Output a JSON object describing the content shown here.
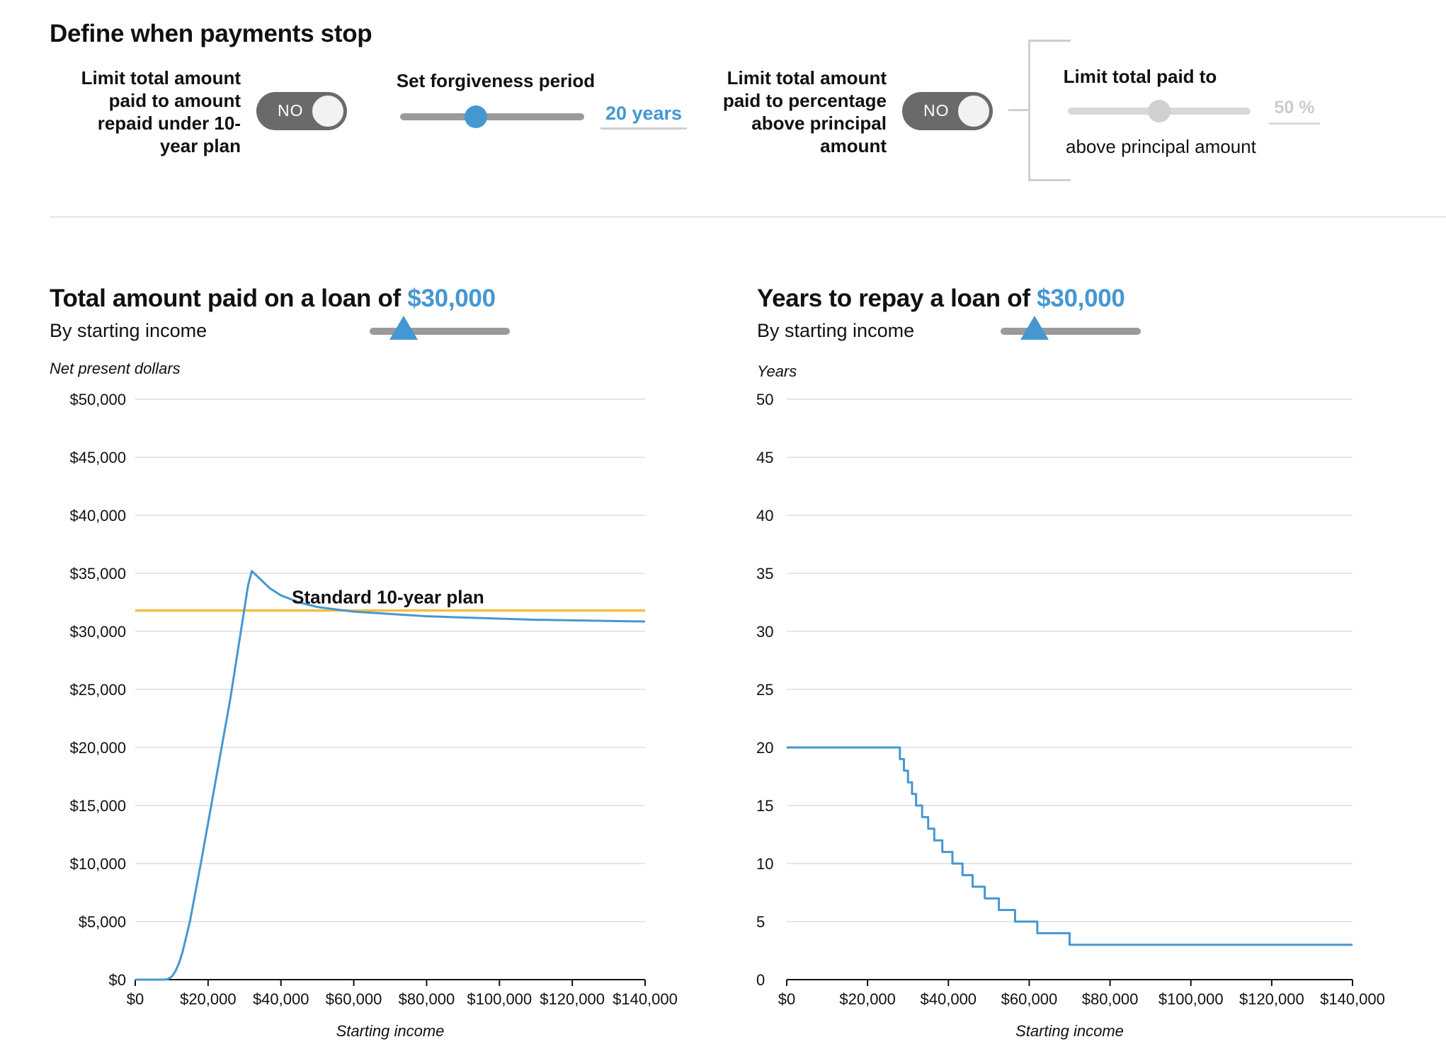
{
  "controls": {
    "section_title": "Define when payments stop",
    "limit_10yr": {
      "label": "Limit total amount paid to amount repaid under 10-year plan",
      "toggle": "NO"
    },
    "forgiveness": {
      "label": "Set forgiveness period",
      "value": "20 years",
      "slider_fraction": 0.41
    },
    "limit_pct": {
      "label": "Limit total amount paid to percentage above principal amount",
      "toggle": "NO"
    },
    "limit_paid": {
      "label": "Limit total paid to",
      "value": "50 %",
      "suffix": "above principal amount",
      "slider_fraction": 0.5,
      "disabled": true
    }
  },
  "colors": {
    "accent": "#4597d2",
    "standard_plan": "#f2be42",
    "grid": "#dddddd",
    "toggle": "#6a6a6a"
  },
  "chart_data": [
    {
      "type": "line",
      "title": "Total amount paid on a loan of",
      "title_amount": "$30,000",
      "subtitle": "By starting income",
      "ylabel": "Net present dollars",
      "xlabel": "Starting income",
      "loan_slider_fraction": 0.24,
      "xlim": [
        0,
        140000
      ],
      "ylim": [
        0,
        50000
      ],
      "x_ticks": [
        0,
        20000,
        40000,
        60000,
        80000,
        100000,
        120000,
        140000
      ],
      "x_tick_labels": [
        "$0",
        "$20,000",
        "$40,000",
        "$60,000",
        "$80,000",
        "$100,000",
        "$120,000",
        "$140,000"
      ],
      "y_ticks": [
        0,
        5000,
        10000,
        15000,
        20000,
        25000,
        30000,
        35000,
        40000,
        45000,
        50000
      ],
      "y_tick_labels": [
        "$0",
        "$5,000",
        "$10,000",
        "$15,000",
        "$20,000",
        "$25,000",
        "$30,000",
        "$35,000",
        "$40,000",
        "$45,000",
        "$50,000"
      ],
      "grid": true,
      "reference_line": {
        "label": "Standard 10-year plan",
        "y": 31800
      },
      "series": [
        {
          "x": [
            0,
            8000,
            9000,
            10000,
            11000,
            12000,
            13000,
            15000,
            18000,
            22000,
            26000,
            28000,
            30000,
            31000,
            32000,
            34000,
            37000,
            40000,
            45000,
            50000,
            55000,
            60000,
            70000,
            80000,
            90000,
            100000,
            110000,
            120000,
            130000,
            140000
          ],
          "y": [
            0,
            0,
            50,
            250,
            700,
            1400,
            2400,
            5000,
            10000,
            17000,
            24000,
            28000,
            32000,
            34000,
            35200,
            34600,
            33700,
            33100,
            32500,
            32100,
            31900,
            31700,
            31500,
            31300,
            31200,
            31100,
            31000,
            30950,
            30900,
            30850
          ]
        }
      ]
    },
    {
      "type": "line",
      "title": "Years to repay a loan of",
      "title_amount": "$30,000",
      "subtitle": "By starting income",
      "ylabel": "Years",
      "xlabel": "Starting income",
      "loan_slider_fraction": 0.24,
      "xlim": [
        0,
        140000
      ],
      "ylim": [
        0,
        50
      ],
      "x_ticks": [
        0,
        20000,
        40000,
        60000,
        80000,
        100000,
        120000,
        140000
      ],
      "x_tick_labels": [
        "$0",
        "$20,000",
        "$40,000",
        "$60,000",
        "$80,000",
        "$100,000",
        "$120,000",
        "$140,000"
      ],
      "y_ticks": [
        0,
        5,
        10,
        15,
        20,
        25,
        30,
        35,
        40,
        45,
        50
      ],
      "y_tick_labels": [
        "0",
        "5",
        "10",
        "15",
        "20",
        "25",
        "30",
        "35",
        "40",
        "45",
        "50"
      ],
      "grid": true,
      "series": [
        {
          "step": true,
          "x": [
            0,
            28000,
            29000,
            30000,
            31000,
            32000,
            33500,
            35000,
            36500,
            38500,
            41000,
            43500,
            46000,
            49000,
            52500,
            56500,
            62000,
            70000,
            80500,
            96000,
            122500,
            140000
          ],
          "y": [
            20,
            19,
            18,
            17,
            16,
            15,
            14,
            13,
            12,
            11,
            10,
            9,
            8,
            7,
            6,
            5,
            4,
            3,
            3,
            3,
            3,
            3
          ]
        }
      ]
    }
  ]
}
